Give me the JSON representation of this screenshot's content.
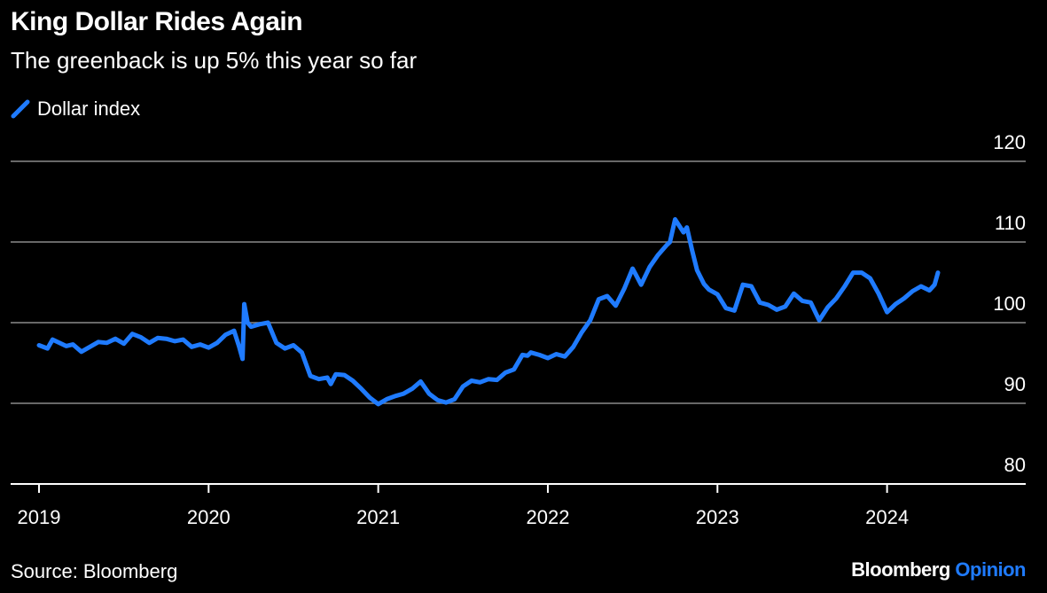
{
  "header": {
    "title": "King Dollar Rides Again",
    "subtitle": "The greenback is up 5% this year so far"
  },
  "legend": {
    "label": "Dollar index"
  },
  "footer": {
    "source": "Source: Bloomberg",
    "brand_main": "Bloomberg",
    "brand_accent": "Opinion"
  },
  "colors": {
    "series": "#1f7bff",
    "grid": "#8a8a8a",
    "background": "#000000"
  },
  "chart_data": {
    "type": "line",
    "title": "King Dollar Rides Again",
    "subtitle": "The greenback is up 5% this year so far",
    "xlabel": "",
    "ylabel": "",
    "x_tick_labels": [
      "2019",
      "2020",
      "2021",
      "2022",
      "2023",
      "2024"
    ],
    "y_ticks": [
      80,
      90,
      100,
      110,
      120
    ],
    "ylim": [
      80,
      120
    ],
    "xlim": [
      2019.0,
      2024.3
    ],
    "y_axis_side": "right",
    "grid": true,
    "legend_position": "top-left",
    "series": [
      {
        "name": "Dollar index",
        "x": [
          2019.0,
          2019.05,
          2019.08,
          2019.12,
          2019.16,
          2019.2,
          2019.25,
          2019.3,
          2019.35,
          2019.4,
          2019.45,
          2019.5,
          2019.55,
          2019.6,
          2019.65,
          2019.7,
          2019.75,
          2019.8,
          2019.85,
          2019.9,
          2019.95,
          2020.0,
          2020.05,
          2020.1,
          2020.15,
          2020.18,
          2020.2,
          2020.21,
          2020.23,
          2020.25,
          2020.3,
          2020.35,
          2020.4,
          2020.45,
          2020.5,
          2020.55,
          2020.6,
          2020.65,
          2020.7,
          2020.72,
          2020.75,
          2020.8,
          2020.85,
          2020.9,
          2020.95,
          2021.0,
          2021.05,
          2021.1,
          2021.15,
          2021.2,
          2021.25,
          2021.3,
          2021.35,
          2021.4,
          2021.45,
          2021.5,
          2021.55,
          2021.6,
          2021.65,
          2021.7,
          2021.75,
          2021.8,
          2021.85,
          2021.88,
          2021.9,
          2021.95,
          2022.0,
          2022.05,
          2022.1,
          2022.15,
          2022.2,
          2022.25,
          2022.3,
          2022.35,
          2022.4,
          2022.45,
          2022.5,
          2022.55,
          2022.6,
          2022.65,
          2022.7,
          2022.72,
          2022.75,
          2022.8,
          2022.82,
          2022.85,
          2022.88,
          2022.92,
          2022.95,
          2023.0,
          2023.05,
          2023.1,
          2023.15,
          2023.2,
          2023.25,
          2023.3,
          2023.35,
          2023.4,
          2023.45,
          2023.5,
          2023.55,
          2023.6,
          2023.65,
          2023.7,
          2023.75,
          2023.8,
          2023.85,
          2023.9,
          2023.95,
          2024.0,
          2024.05,
          2024.1,
          2024.15,
          2024.2,
          2024.25,
          2024.28,
          2024.3
        ],
        "y": [
          97.2,
          96.8,
          97.9,
          97.5,
          97.1,
          97.3,
          96.4,
          97.0,
          97.6,
          97.5,
          98.0,
          97.4,
          98.6,
          98.2,
          97.5,
          98.1,
          98.0,
          97.7,
          97.9,
          97.0,
          97.3,
          96.9,
          97.5,
          98.5,
          99.0,
          97.0,
          95.5,
          102.3,
          100.0,
          99.5,
          99.8,
          100.0,
          97.5,
          96.8,
          97.2,
          96.3,
          93.4,
          93.0,
          93.2,
          92.4,
          93.6,
          93.5,
          92.8,
          91.8,
          90.7,
          89.9,
          90.5,
          90.9,
          91.2,
          91.8,
          92.7,
          91.2,
          90.4,
          90.1,
          90.5,
          92.1,
          92.8,
          92.6,
          93.0,
          92.9,
          93.8,
          94.2,
          96.0,
          95.9,
          96.3,
          96.0,
          95.6,
          96.1,
          95.8,
          97.0,
          98.8,
          100.3,
          102.9,
          103.3,
          102.1,
          104.2,
          106.7,
          104.7,
          106.9,
          108.4,
          109.6,
          110.0,
          112.8,
          111.2,
          111.8,
          109.0,
          106.5,
          104.8,
          104.1,
          103.5,
          101.8,
          101.5,
          104.7,
          104.5,
          102.5,
          102.2,
          101.6,
          102.0,
          103.6,
          102.7,
          102.5,
          100.3,
          101.9,
          103.0,
          104.5,
          106.2,
          106.2,
          105.5,
          103.6,
          101.3,
          102.3,
          103.0,
          103.9,
          104.5,
          104.0,
          104.7,
          106.2
        ]
      }
    ]
  }
}
